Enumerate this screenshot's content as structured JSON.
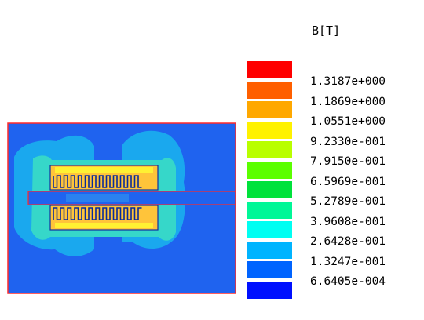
{
  "legend": {
    "title": "B[T]",
    "colors": [
      "#ff0000",
      "#ff5f00",
      "#ffa800",
      "#fff200",
      "#b9ff00",
      "#5bff00",
      "#00e23b",
      "#00f797",
      "#00fff2",
      "#00b4ff",
      "#0064ff",
      "#0010ff"
    ],
    "labels": [
      "1.3187e+000",
      "1.1869e+000",
      "1.0551e+000",
      "9.2330e-001",
      "7.9150e-001",
      "6.5969e-001",
      "5.2789e-001",
      "3.9608e-001",
      "2.6428e-001",
      "1.3247e-001",
      "6.6405e-004"
    ]
  },
  "colors": {
    "background_field": "#1f63ef",
    "outline": "#ff2a2a",
    "low_field": "#1aa8ee",
    "mid_field": "#36d7c9",
    "core": "#ffc43a",
    "core_edge": "#ffee33",
    "winding": "#0a2a9a"
  }
}
